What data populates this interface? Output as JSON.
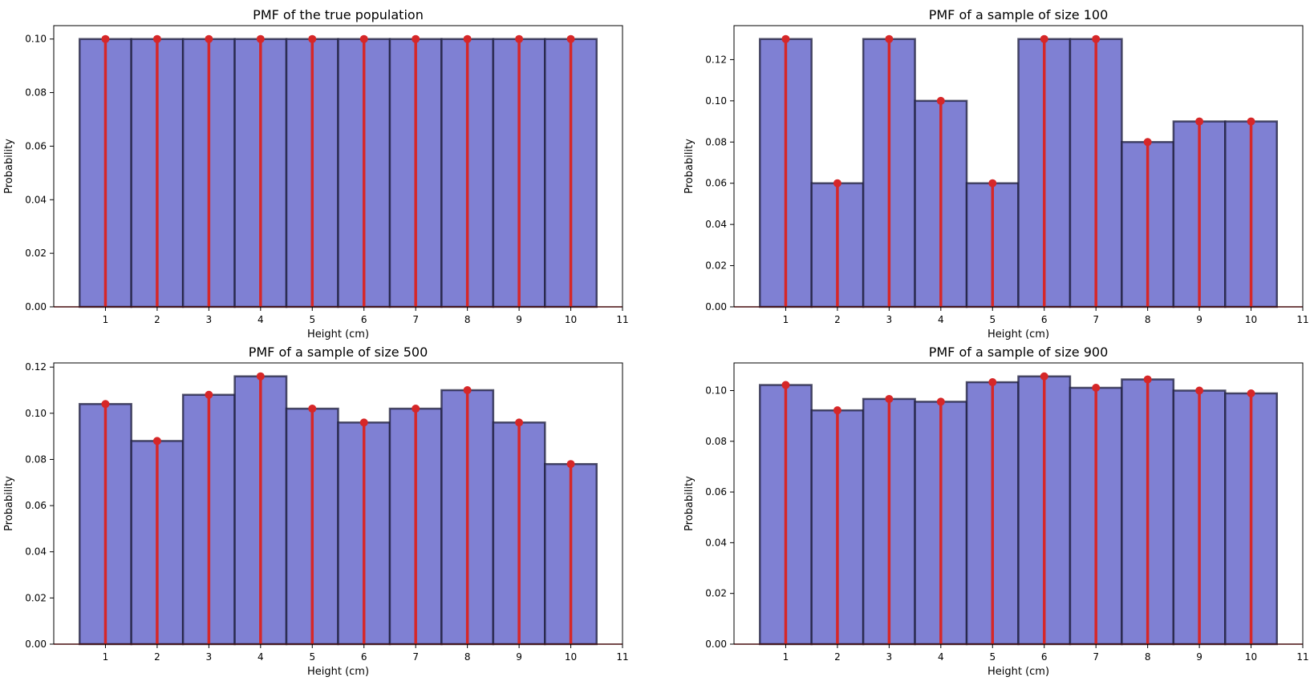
{
  "figure": {
    "background": "#ffffff",
    "bar_color": "#7f80d3",
    "bar_edge_color": "#1c1c3a",
    "stem_color": "#d62728"
  },
  "chart_data": [
    {
      "type": "bar",
      "title": "PMF of the true population",
      "xlabel": "Height (cm)",
      "ylabel": "Probability",
      "categories": [
        1,
        2,
        3,
        4,
        5,
        6,
        7,
        8,
        9,
        10
      ],
      "values": [
        0.1,
        0.1,
        0.1,
        0.1,
        0.1,
        0.1,
        0.1,
        0.1,
        0.1,
        0.1
      ],
      "xlim": [
        0,
        11
      ],
      "ylim": [
        0,
        0.105
      ],
      "xticks": [
        1,
        2,
        3,
        4,
        5,
        6,
        7,
        8,
        9,
        10,
        11
      ],
      "yticks": [
        0.0,
        0.02,
        0.04,
        0.06,
        0.08,
        0.1
      ],
      "ytick_labels": [
        "0.00",
        "0.02",
        "0.04",
        "0.06",
        "0.08",
        "0.10"
      ],
      "overlay": "stem"
    },
    {
      "type": "bar",
      "title": "PMF of a sample of size 100",
      "xlabel": "Height (cm)",
      "ylabel": "Probability",
      "categories": [
        1,
        2,
        3,
        4,
        5,
        6,
        7,
        8,
        9,
        10
      ],
      "values": [
        0.13,
        0.06,
        0.13,
        0.1,
        0.06,
        0.13,
        0.13,
        0.08,
        0.09,
        0.09
      ],
      "xlim": [
        0,
        11
      ],
      "ylim": [
        0,
        0.1365
      ],
      "xticks": [
        1,
        2,
        3,
        4,
        5,
        6,
        7,
        8,
        9,
        10,
        11
      ],
      "yticks": [
        0.0,
        0.02,
        0.04,
        0.06,
        0.08,
        0.1,
        0.12
      ],
      "ytick_labels": [
        "0.00",
        "0.02",
        "0.04",
        "0.06",
        "0.08",
        "0.10",
        "0.12"
      ],
      "overlay": "stem"
    },
    {
      "type": "bar",
      "title": "PMF of a sample of size 500",
      "xlabel": "Height (cm)",
      "ylabel": "Probability",
      "categories": [
        1,
        2,
        3,
        4,
        5,
        6,
        7,
        8,
        9,
        10
      ],
      "values": [
        0.104,
        0.088,
        0.108,
        0.116,
        0.102,
        0.096,
        0.102,
        0.11,
        0.096,
        0.078
      ],
      "xlim": [
        0,
        11
      ],
      "ylim": [
        0,
        0.1218
      ],
      "xticks": [
        1,
        2,
        3,
        4,
        5,
        6,
        7,
        8,
        9,
        10,
        11
      ],
      "yticks": [
        0.0,
        0.02,
        0.04,
        0.06,
        0.08,
        0.1,
        0.12
      ],
      "ytick_labels": [
        "0.00",
        "0.02",
        "0.04",
        "0.06",
        "0.08",
        "0.10",
        "0.12"
      ],
      "overlay": "stem"
    },
    {
      "type": "bar",
      "title": "PMF of a sample of size 900",
      "xlabel": "Height (cm)",
      "ylabel": "Probability",
      "categories": [
        1,
        2,
        3,
        4,
        5,
        6,
        7,
        8,
        9,
        10
      ],
      "values": [
        0.1022,
        0.0922,
        0.0967,
        0.0956,
        0.1033,
        0.1056,
        0.1011,
        0.1044,
        0.1,
        0.0989
      ],
      "xlim": [
        0,
        11
      ],
      "ylim": [
        0,
        0.1109
      ],
      "xticks": [
        1,
        2,
        3,
        4,
        5,
        6,
        7,
        8,
        9,
        10,
        11
      ],
      "yticks": [
        0.0,
        0.02,
        0.04,
        0.06,
        0.08,
        0.1
      ],
      "ytick_labels": [
        "0.00",
        "0.02",
        "0.04",
        "0.06",
        "0.08",
        "0.10"
      ],
      "overlay": "stem"
    }
  ]
}
